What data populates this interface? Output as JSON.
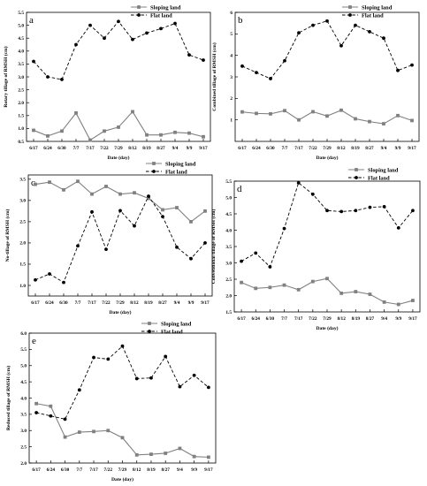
{
  "figure": {
    "x_tick_labels": [
      "6/17",
      "6/24",
      "6/30",
      "7/7",
      "7/17",
      "7/22",
      "7/29",
      "8/12",
      "8/19",
      "8/27",
      "9/4",
      "9/9",
      "9/17"
    ],
    "colors": {
      "sloping": "#808080",
      "flat": "#000000",
      "axis": "#000000"
    }
  },
  "chart_data": [
    {
      "type": "line",
      "panel_label": "a",
      "title": "",
      "xlabel": "Date (day)",
      "ylabel": "Rotary tillage of RMSH (cm)",
      "categories": [
        "6/17",
        "6/24",
        "6/30",
        "7/7",
        "7/17",
        "7/22",
        "7/29",
        "8/12",
        "8/19",
        "8/27",
        "9/4",
        "9/9",
        "9/17"
      ],
      "ylim": [
        0.5,
        5.5
      ],
      "yticks": [
        "0.5",
        "1.0",
        "1.5",
        "2.0",
        "2.5",
        "3.0",
        "3.5",
        "4.0",
        "4.5",
        "5.0",
        "5.5"
      ],
      "legend_position": "top-right",
      "series": [
        {
          "name": "Sloping land",
          "style": "solid-square",
          "values": [
            0.93,
            0.71,
            0.9,
            1.6,
            0.55,
            0.9,
            1.05,
            1.65,
            0.75,
            0.75,
            0.85,
            0.82,
            0.68
          ]
        },
        {
          "name": "Flat land",
          "style": "dashed-circle",
          "values": [
            3.6,
            3.0,
            2.9,
            4.25,
            5.0,
            4.5,
            5.15,
            4.45,
            4.7,
            4.87,
            5.07,
            3.85,
            3.65
          ]
        }
      ]
    },
    {
      "type": "line",
      "panel_label": "b",
      "title": "",
      "xlabel": "Date (day)",
      "ylabel": "Combined tillage of RMSH (cm)",
      "categories": [
        "6/17",
        "6/24",
        "6/30",
        "7/7",
        "7/17",
        "7/22",
        "7/29",
        "8/12",
        "8/19",
        "8/27",
        "9/4",
        "9/9",
        "9/17"
      ],
      "ylim": [
        0,
        6
      ],
      "yticks": [
        "1",
        "2",
        "3",
        "4",
        "5",
        "6"
      ],
      "legend_position": "top-right",
      "series": [
        {
          "name": "Sloping land",
          "style": "solid-square",
          "values": [
            1.37,
            1.3,
            1.28,
            1.43,
            1.0,
            1.38,
            1.18,
            1.45,
            1.05,
            0.92,
            0.82,
            1.2,
            0.97
          ]
        },
        {
          "name": "Flat land",
          "style": "dashed-circle",
          "values": [
            3.5,
            3.2,
            2.92,
            3.75,
            5.05,
            5.4,
            5.6,
            4.45,
            5.4,
            5.1,
            4.8,
            3.3,
            3.55
          ]
        }
      ]
    },
    {
      "type": "line",
      "panel_label": "c",
      "title": "",
      "xlabel": "Date (day)",
      "ylabel": "No-tillage of RMSH (cm)",
      "categories": [
        "6/17",
        "6/24",
        "6/30",
        "7/7",
        "7/17",
        "7/22",
        "7/29",
        "8/12",
        "8/19",
        "8/27",
        "9/4",
        "9/9",
        "9/17"
      ],
      "ylim": [
        0.75,
        3.6
      ],
      "yticks": [
        "1.0",
        "1.5",
        "2.0",
        "2.5",
        "3.0",
        "3.5"
      ],
      "legend_position": "top-right",
      "series": [
        {
          "name": "Sloping land",
          "style": "solid-square",
          "values": [
            3.38,
            3.43,
            3.25,
            3.45,
            3.15,
            3.33,
            3.15,
            3.18,
            3.05,
            2.78,
            2.83,
            2.5,
            2.75
          ]
        },
        {
          "name": "Flat land",
          "style": "dashed-circle",
          "values": [
            1.13,
            1.27,
            1.07,
            1.93,
            2.73,
            1.85,
            2.76,
            2.4,
            3.1,
            2.62,
            1.9,
            1.63,
            2.0
          ]
        }
      ]
    },
    {
      "type": "line",
      "panel_label": "d",
      "title": "",
      "xlabel": "Date (day)",
      "ylabel": "Conventional tillage of RMSH (cm)",
      "categories": [
        "6/17",
        "6/24",
        "6/30",
        "7/7",
        "7/17",
        "7/22",
        "7/29",
        "8/12",
        "8/19",
        "8/27",
        "9/4",
        "9/9",
        "9/17"
      ],
      "ylim": [
        1.5,
        5.5
      ],
      "yticks": [
        "1.5",
        "2.0",
        "2.5",
        "3.0",
        "3.5",
        "4.0",
        "4.5",
        "5.0",
        "5.5"
      ],
      "legend_position": "top-right",
      "series": [
        {
          "name": "Sloping land",
          "style": "solid-square",
          "values": [
            2.4,
            2.22,
            2.25,
            2.32,
            2.18,
            2.43,
            2.52,
            2.07,
            2.12,
            2.04,
            1.8,
            1.73,
            1.85
          ]
        },
        {
          "name": "Flat land",
          "style": "dashed-circle",
          "values": [
            3.05,
            3.3,
            2.88,
            4.05,
            5.45,
            5.1,
            4.6,
            4.57,
            4.6,
            4.7,
            4.72,
            4.07,
            4.6
          ]
        }
      ]
    },
    {
      "type": "line",
      "panel_label": "e",
      "title": "",
      "xlabel": "Date (day)",
      "ylabel": "Reduced tillage of RMSH (cm)",
      "categories": [
        "6/17",
        "6/24",
        "6/30",
        "7/7",
        "7/17",
        "7/22",
        "7/29",
        "8/12",
        "8/19",
        "8/27",
        "9/4",
        "9/9",
        "9/17"
      ],
      "ylim": [
        2.0,
        6.0
      ],
      "yticks": [
        "2.0",
        "2.5",
        "3.0",
        "3.5",
        "4.0",
        "4.5",
        "5.0",
        "5.5",
        "6.0"
      ],
      "legend_position": "top-right",
      "series": [
        {
          "name": "Sloping land",
          "style": "solid-square",
          "values": [
            3.83,
            3.75,
            2.8,
            2.95,
            2.97,
            3.0,
            2.78,
            2.25,
            2.27,
            2.3,
            2.45,
            2.2,
            2.18
          ]
        },
        {
          "name": "Flat land",
          "style": "dashed-circle",
          "values": [
            3.55,
            3.45,
            3.35,
            4.25,
            5.25,
            5.2,
            5.6,
            4.6,
            4.62,
            5.28,
            4.35,
            4.7,
            4.33
          ]
        }
      ]
    }
  ]
}
